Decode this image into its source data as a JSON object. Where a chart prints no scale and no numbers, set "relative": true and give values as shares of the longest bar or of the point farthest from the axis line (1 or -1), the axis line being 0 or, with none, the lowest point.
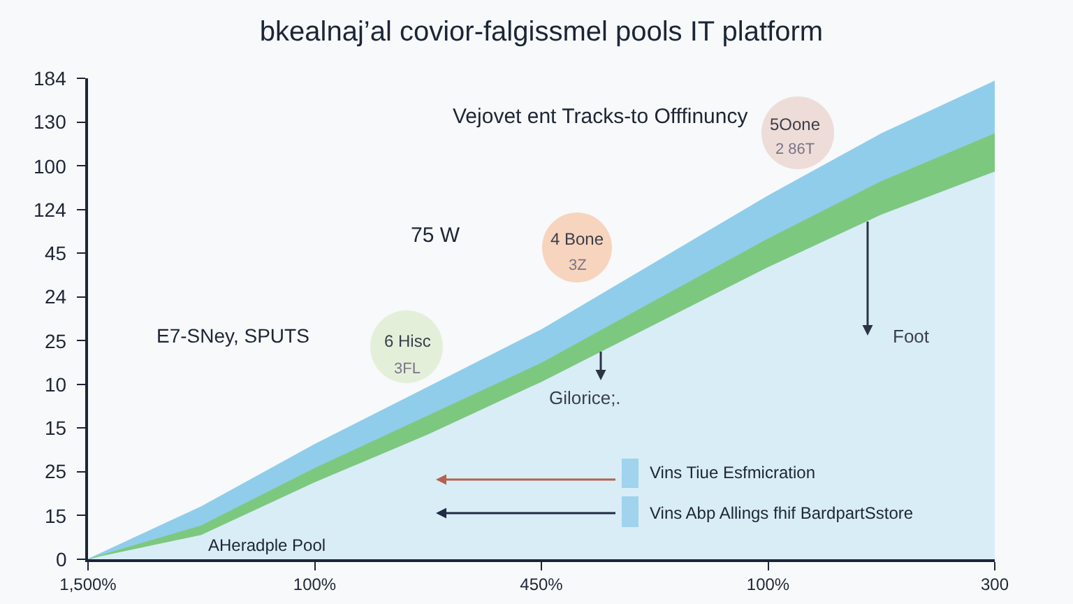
{
  "chart_data": {
    "type": "area",
    "title": "bkealnaj’al covior-falgissmel pools IT platform",
    "stacked": true,
    "relative": true,
    "categories": [
      "1,500%",
      null,
      "100%",
      null,
      "450%",
      null,
      "100%",
      null,
      "300"
    ],
    "series": [
      {
        "color": "#d9edf7",
        "values": [
          0,
          0.05,
          0.16,
          0.26,
          0.37,
          0.49,
          0.61,
          0.72,
          0.81
        ]
      },
      {
        "color": "#7dc87f",
        "values": [
          0,
          0.02,
          0.03,
          0.04,
          0.04,
          0.05,
          0.06,
          0.07,
          0.08
        ]
      },
      {
        "color": "#90cdeb",
        "values": [
          0,
          0.04,
          0.05,
          0.06,
          0.07,
          0.08,
          0.09,
          0.1,
          0.11
        ]
      }
    ],
    "annotations": [
      "184",
      "130",
      "100",
      "124",
      "45",
      "24",
      "25",
      "10",
      "15",
      "25",
      "15",
      "0",
      "Vejovet ent Tracks-to Offfinuncy",
      "5Oone",
      "2 86T",
      "75 W",
      "4 Bone",
      "3Z",
      "E7-SNey, SPUTS",
      "6 Hisc",
      "3FL",
      "Foot",
      "Gilorice;.",
      "Vins Tiue Esfmicration",
      "Vins Abp Allings fhif BardpartSstore",
      "AHeradple Pool"
    ]
  }
}
